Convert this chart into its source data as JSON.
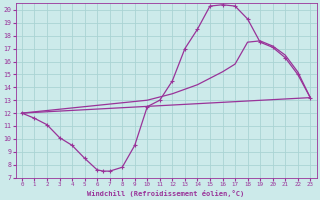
{
  "xlabel": "Windchill (Refroidissement éolien,°C)",
  "ylabel": "",
  "bg_color": "#cceaea",
  "line_color": "#993399",
  "grid_color": "#aad4d4",
  "xlim": [
    -0.5,
    23.5
  ],
  "ylim": [
    7,
    20.5
  ],
  "xticks": [
    0,
    1,
    2,
    3,
    4,
    5,
    6,
    7,
    8,
    9,
    10,
    11,
    12,
    13,
    14,
    15,
    16,
    17,
    18,
    19,
    20,
    21,
    22,
    23
  ],
  "yticks": [
    7,
    8,
    9,
    10,
    11,
    12,
    13,
    14,
    15,
    16,
    17,
    18,
    19,
    20
  ],
  "line1_x": [
    0,
    1,
    2,
    3,
    4,
    5,
    6,
    6.5,
    7,
    8,
    9,
    10,
    11,
    12,
    13,
    14,
    15,
    16,
    17,
    18,
    19,
    20,
    21,
    22,
    23
  ],
  "line1_y": [
    12,
    11.6,
    11.1,
    10.1,
    9.5,
    8.5,
    7.6,
    7.5,
    7.5,
    7.8,
    9.5,
    12.5,
    13.0,
    14.5,
    17.0,
    18.5,
    20.3,
    20.4,
    20.3,
    19.3,
    17.5,
    17.1,
    16.3,
    15.0,
    13.2
  ],
  "line2_x": [
    0,
    23
  ],
  "line2_y": [
    12,
    13.2
  ],
  "line3_x": [
    0,
    10,
    12,
    14,
    16,
    17,
    18,
    19,
    20,
    21,
    22,
    23
  ],
  "line3_y": [
    12,
    13.0,
    13.5,
    14.2,
    15.2,
    15.8,
    17.5,
    17.6,
    17.2,
    16.5,
    15.2,
    13.2
  ]
}
